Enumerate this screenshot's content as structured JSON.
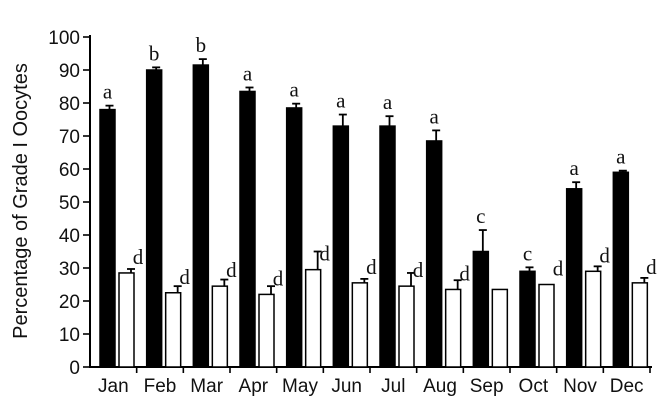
{
  "chart_data": {
    "type": "bar",
    "ylabel": "Percentage of Grade I Oocytes",
    "xlabel": "",
    "ylim": [
      0,
      100
    ],
    "yticks": [
      0,
      10,
      20,
      30,
      40,
      50,
      60,
      70,
      80,
      90,
      100
    ],
    "grid": false,
    "legend": "none",
    "categories": [
      "Jan",
      "Feb",
      "Mar",
      "Apr",
      "May",
      "Jun",
      "Jul",
      "Aug",
      "Sep",
      "Oct",
      "Nov",
      "Dec"
    ],
    "series": [
      {
        "color": "#000000",
        "values": [
          78,
          90,
          91.5,
          83.5,
          78.5,
          73,
          73,
          68.5,
          35,
          29,
          54,
          59
        ],
        "errors": [
          1.2,
          0.8,
          1.8,
          1.2,
          1.3,
          3.5,
          3,
          3.2,
          6.5,
          1.2,
          2,
          0.5
        ],
        "labels": [
          "a",
          "b",
          "b",
          "a",
          "a",
          "a",
          "a",
          "a",
          "c",
          "c",
          "a",
          "a"
        ]
      },
      {
        "color": "#ffffff",
        "values": [
          28.5,
          22.5,
          24.5,
          22,
          29.5,
          25.5,
          24.5,
          23.5,
          23.5,
          25,
          29,
          25.5
        ],
        "errors": [
          1.2,
          2,
          2,
          2.5,
          5.5,
          1.2,
          4,
          2.8,
          0,
          0,
          1.5,
          1.5
        ],
        "labels": [
          "d",
          "d",
          "d",
          "d",
          "d",
          "d",
          "d",
          "d",
          "",
          "d",
          "d",
          "d"
        ]
      }
    ]
  }
}
